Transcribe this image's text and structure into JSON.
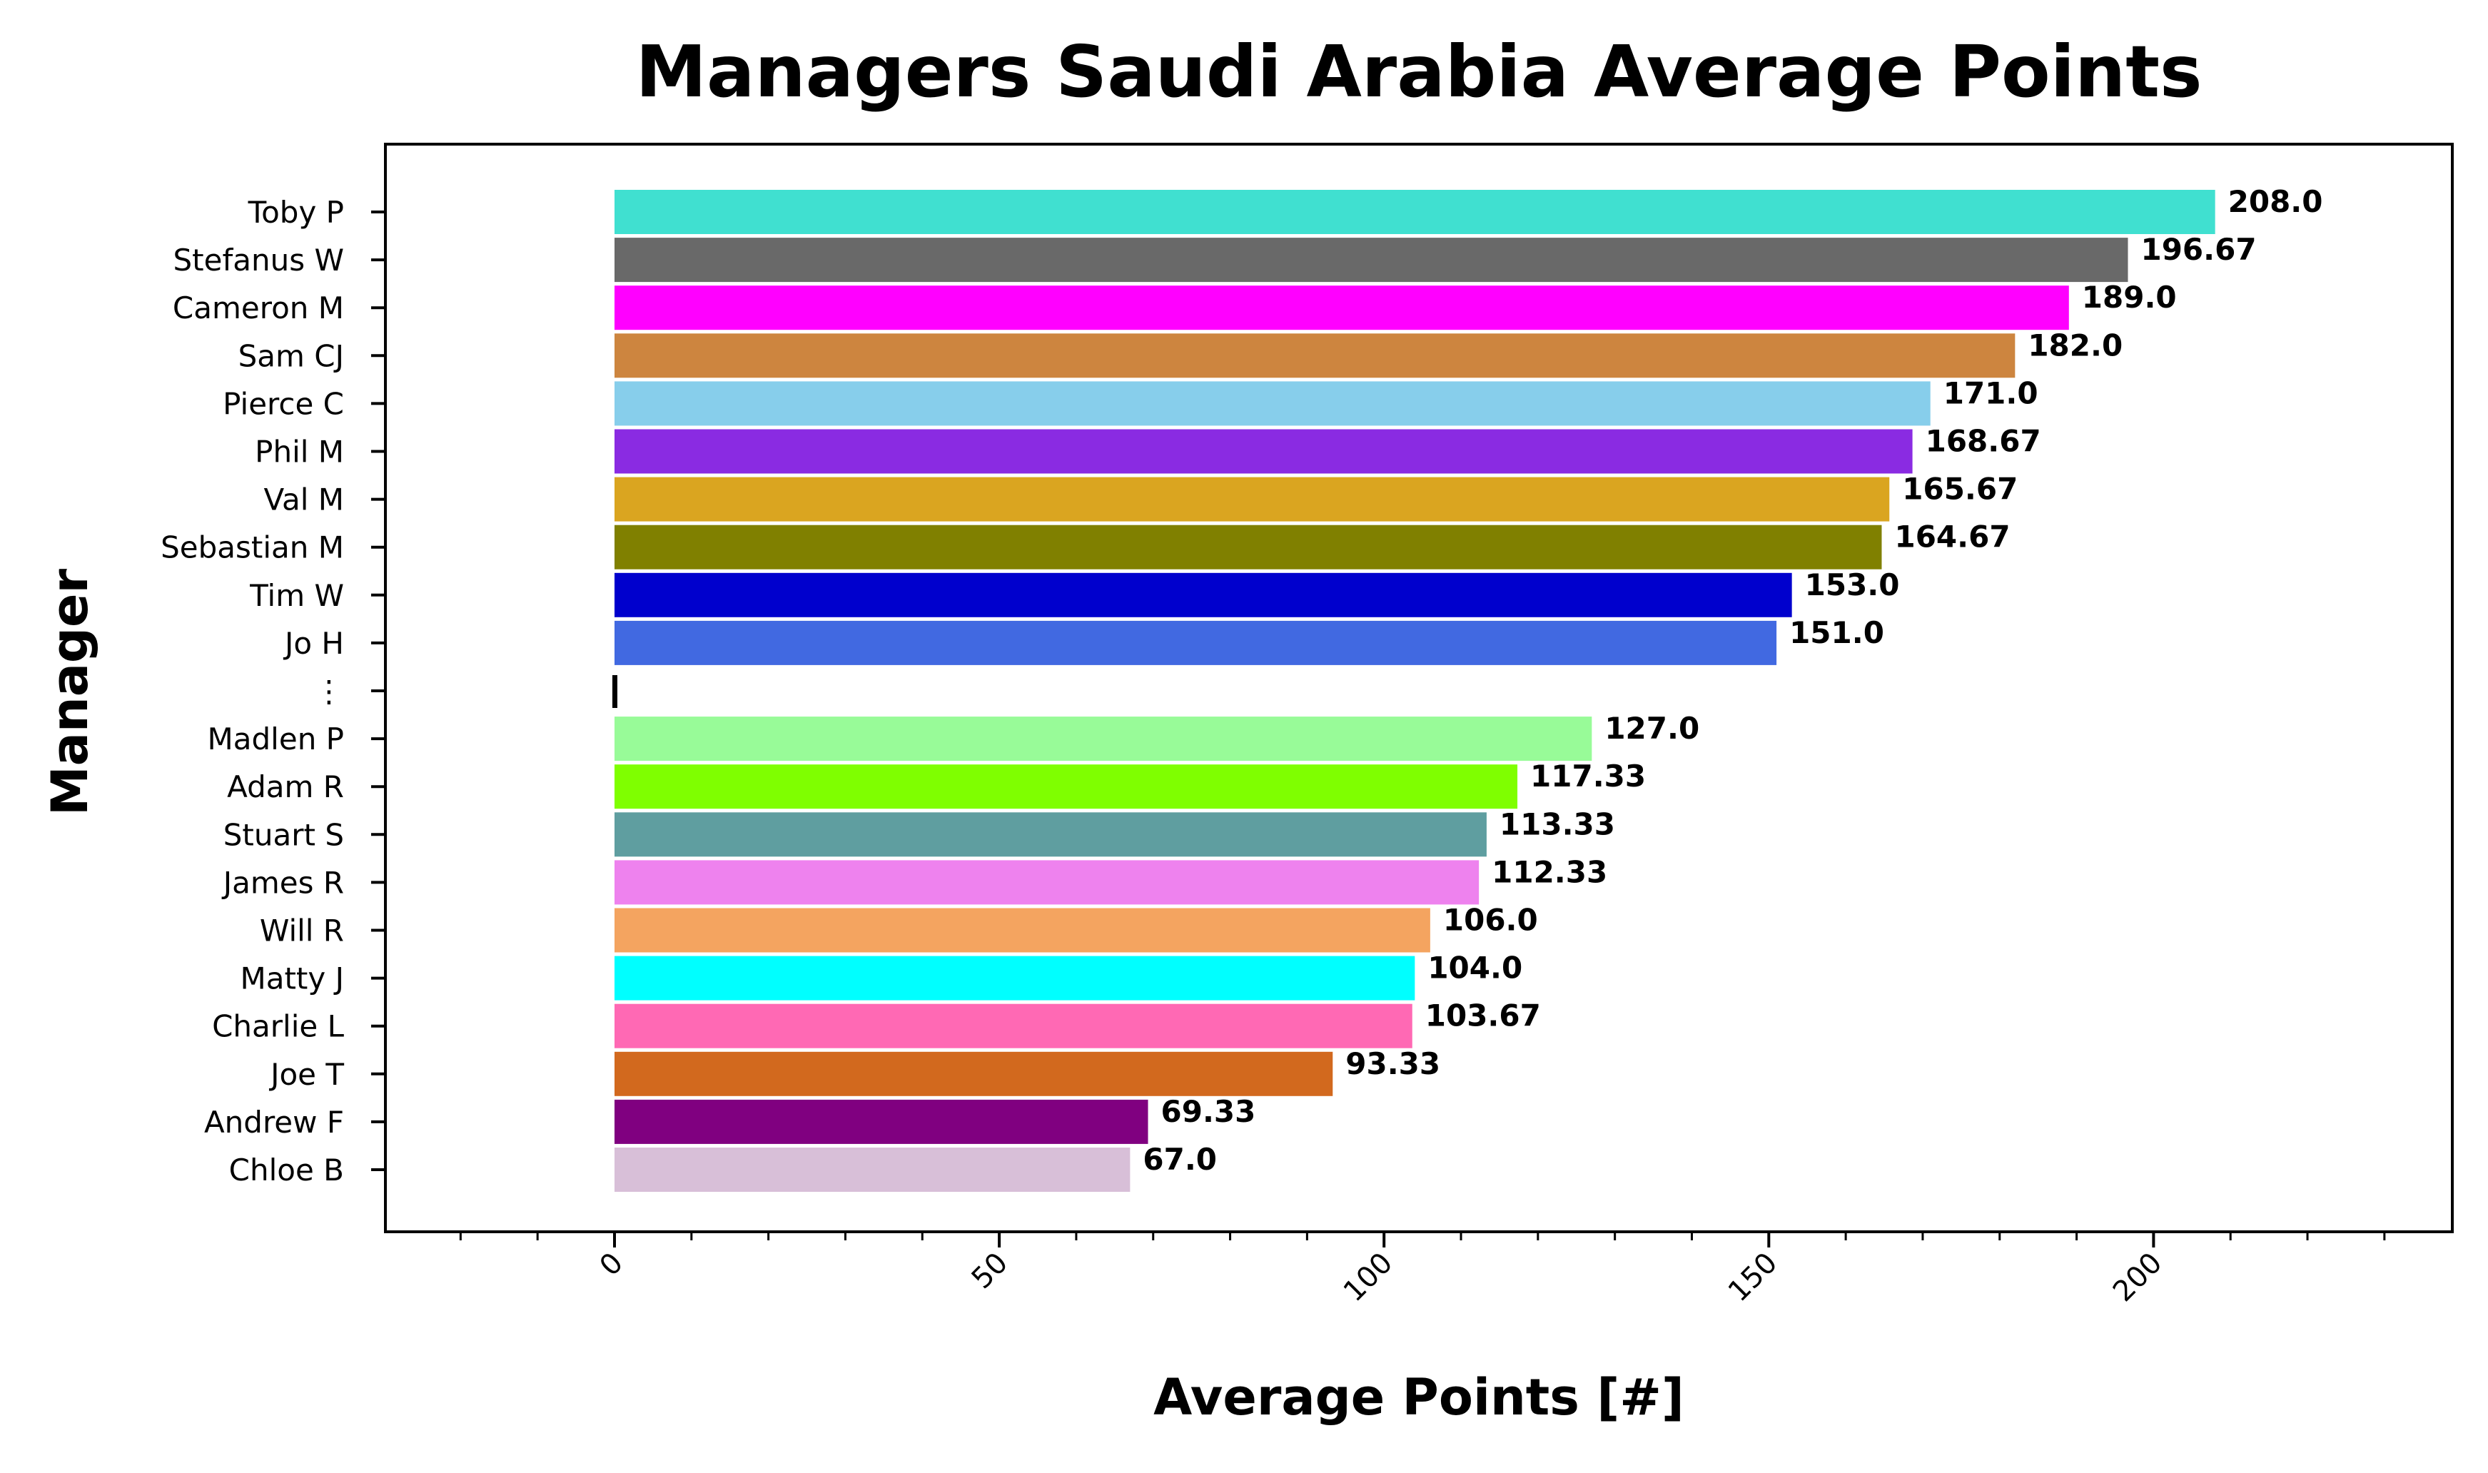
{
  "chart_data": {
    "type": "bar",
    "orientation": "horizontal",
    "title": "Managers Saudi Arabia Average Points",
    "xlabel": "Average Points [#]",
    "ylabel": "Manager",
    "xlim": [
      -30,
      240
    ],
    "xticks": [
      "0",
      "50",
      "100",
      "150",
      "200"
    ],
    "grid": false,
    "categories": [
      "Toby P",
      "Stefanus W",
      "Cameron M",
      "Sam CJ",
      "Pierce C",
      "Phil M",
      "Val M",
      "Sebastian M",
      "Tim W",
      "Jo H",
      "⋮",
      "Madlen P",
      "Adam R",
      "Stuart S",
      "James R",
      "Will R",
      "Matty J",
      "Charlie L",
      "Joe T",
      "Andrew F",
      "Chloe B"
    ],
    "values": [
      208.0,
      196.67,
      189.0,
      182.0,
      171.0,
      168.67,
      165.67,
      164.67,
      153.0,
      151.0,
      null,
      127.0,
      117.33,
      113.33,
      112.33,
      106.0,
      104.0,
      103.67,
      93.33,
      69.33,
      67.0
    ],
    "value_labels": [
      "208.0",
      "196.67",
      "189.0",
      "182.0",
      "171.0",
      "168.67",
      "165.67",
      "164.67",
      "153.0",
      "151.0",
      "",
      "127.0",
      "117.33",
      "113.33",
      "112.33",
      "106.0",
      "104.0",
      "103.67",
      "93.33",
      "69.33",
      "67.0"
    ],
    "colors": [
      "#40E0D0",
      "#696969",
      "#FF00FF",
      "#CD853F",
      "#87CEEB",
      "#8A2BE2",
      "#DAA520",
      "#808000",
      "#0000CD",
      "#4169E1",
      "#000000",
      "#98FB98",
      "#7FFF00",
      "#5F9EA0",
      "#EE82EE",
      "#F4A460",
      "#00FFFF",
      "#FF69B4",
      "#D2691E",
      "#800080",
      "#D8BFD8"
    ]
  }
}
